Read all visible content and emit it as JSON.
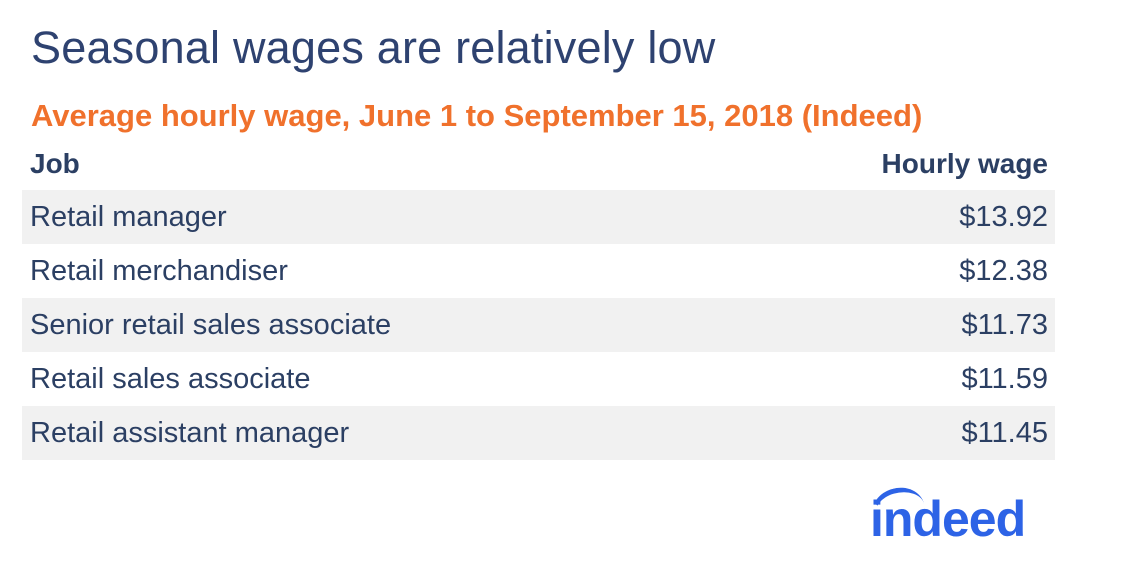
{
  "title": "Seasonal wages are relatively low",
  "subtitle": "Average hourly wage, June 1 to September 15, 2018 (Indeed)",
  "table": {
    "headers": [
      "Job",
      "Hourly wage"
    ],
    "rows": [
      {
        "job": "Retail manager",
        "wage": "$13.92"
      },
      {
        "job": "Retail merchandiser",
        "wage": "$12.38"
      },
      {
        "job": "Senior retail sales associate",
        "wage": "$11.73"
      },
      {
        "job": "Retail sales associate",
        "wage": "$11.59"
      },
      {
        "job": "Retail assistant manager",
        "wage": "$11.45"
      }
    ]
  },
  "logo": "indeed",
  "colors": {
    "title": "#2e4270",
    "subtitle": "#f0712c",
    "text": "#2b3f63",
    "row_shade": "#f1f1f1",
    "logo": "#2d63e6"
  },
  "chart_data": {
    "type": "table",
    "title": "Seasonal wages are relatively low",
    "subtitle": "Average hourly wage, June 1 to September 15, 2018 (Indeed)",
    "columns": [
      "Job",
      "Hourly wage"
    ],
    "categories": [
      "Retail manager",
      "Retail merchandiser",
      "Senior retail sales associate",
      "Retail sales associate",
      "Retail assistant manager"
    ],
    "values": [
      13.92,
      12.38,
      11.73,
      11.59,
      11.45
    ],
    "unit": "USD per hour"
  }
}
